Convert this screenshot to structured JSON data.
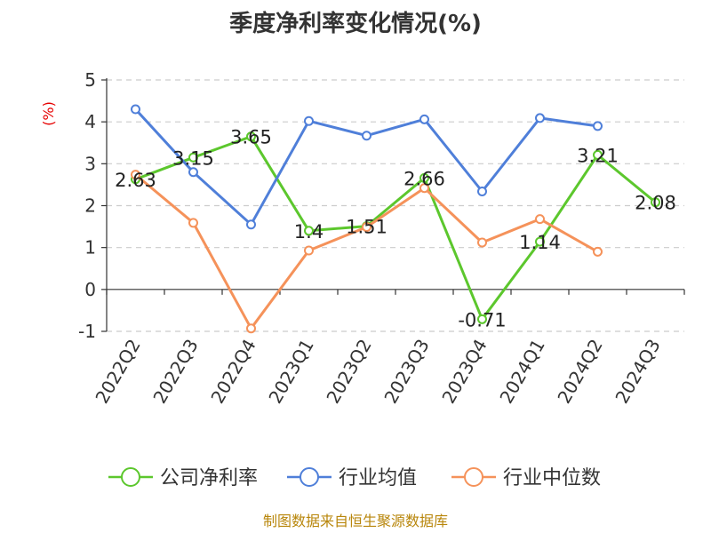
{
  "chart_data": {
    "type": "line",
    "title": "季度净利率变化情况(%)",
    "unit_label": "(%)",
    "categories": [
      "2022Q2",
      "2022Q3",
      "2022Q4",
      "2023Q1",
      "2023Q2",
      "2023Q3",
      "2023Q4",
      "2024Q1",
      "2024Q2",
      "2024Q3"
    ],
    "ylim": [
      -1,
      5
    ],
    "yticks": [
      -1,
      0,
      1,
      2,
      3,
      4,
      5
    ],
    "grid": true,
    "legend_position": "bottom",
    "series": [
      {
        "name": "公司净利率",
        "color": "#5cc72d",
        "values": [
          2.63,
          3.15,
          3.65,
          1.4,
          1.51,
          2.66,
          -0.71,
          1.14,
          3.21,
          2.08
        ],
        "labels": [
          "2.63",
          "3.15",
          "3.65",
          "1.4",
          "1.51",
          "2.66",
          "-0.71",
          "1.14",
          "3.21",
          "2.08"
        ]
      },
      {
        "name": "行业均值",
        "color": "#4f7fd9",
        "values": [
          4.3,
          2.8,
          1.55,
          4.02,
          3.67,
          4.06,
          2.34,
          4.09,
          3.9,
          null
        ]
      },
      {
        "name": "行业中位数",
        "color": "#f5925a",
        "values": [
          2.74,
          1.59,
          -0.93,
          0.93,
          1.49,
          2.42,
          1.12,
          1.68,
          0.9,
          null
        ]
      }
    ],
    "source": "制图数据来自恒生聚源数据库"
  }
}
